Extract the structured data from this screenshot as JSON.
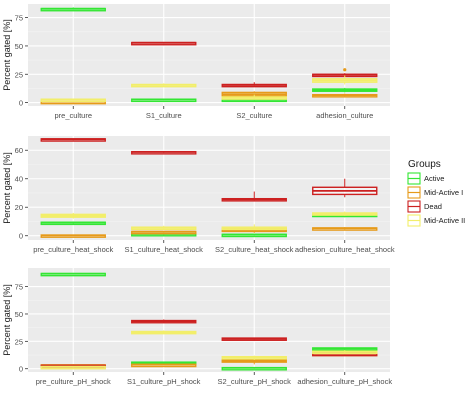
{
  "colors": {
    "panel_bg": "#ebebeb",
    "grid_major": "#ffffff",
    "grid_minor": "#f4f4f4",
    "axis_text": "#4d4d4d",
    "tick": "#333333",
    "Active": "#33e633",
    "Mid-Active I": "#e69a1a",
    "Dead": "#cc2020",
    "Mid-Active II": "#f2ee6a"
  },
  "legend": {
    "title": "Groups",
    "items": [
      {
        "name": "Active",
        "color_key": "Active"
      },
      {
        "name": "Mid-Active I",
        "color_key": "Mid-Active I"
      },
      {
        "name": "Dead",
        "color_key": "Dead"
      },
      {
        "name": "Mid-Active II",
        "color_key": "Mid-Active II"
      }
    ]
  },
  "chart_data": [
    {
      "type": "boxplot",
      "ylabel": "Percent gated [%]",
      "ylim": [
        -3,
        87
      ],
      "yticks": [
        0,
        25,
        50,
        75
      ],
      "categories": [
        "pre_culture",
        "S1_culture",
        "S2_culture",
        "adhesion_culture"
      ],
      "series": [
        {
          "name": "Active",
          "values": [
            [
              82,
              82.5,
              83,
              84
            ],
            [
              2,
              2.5,
              3,
              3
            ],
            [
              1,
              2,
              3,
              4
            ],
            [
              9,
              10,
              12,
              13
            ]
          ]
        },
        {
          "name": "Mid-Active I",
          "values": [
            [
              0,
              0.5,
              1,
              1
            ],
            [
              null,
              null,
              null,
              null
            ],
            [
              5,
              6,
              9,
              10
            ],
            [
              5,
              6,
              7,
              8
            ]
          ]
        },
        {
          "name": "Dead",
          "values": [
            [
              null,
              null,
              null,
              null
            ],
            [
              52,
              52.5,
              53,
              53
            ],
            [
              14,
              15,
              16,
              18
            ],
            [
              23,
              24,
              25,
              26
            ]
          ]
        },
        {
          "name": "Mid-Active II",
          "values": [
            [
              2,
              2.5,
              3,
              3
            ],
            [
              14,
              15,
              16,
              17
            ],
            [
              3,
              4,
              5,
              7
            ],
            [
              16,
              18,
              21,
              24
            ]
          ]
        }
      ],
      "outliers": [
        {
          "category": "adhesion_culture",
          "series": "Mid-Active I",
          "value": 29
        }
      ]
    },
    {
      "type": "boxplot",
      "ylabel": "Percent gated [%]",
      "ylim": [
        -3,
        70
      ],
      "yticks": [
        0,
        20,
        40,
        60
      ],
      "categories": [
        "pre_culture_heat_shock",
        "S1_culture_heat_shock",
        "S2_culture_heat_shock",
        "adhesion_culture_heat_shock"
      ],
      "series": [
        {
          "name": "Active",
          "values": [
            [
              8,
              9,
              9.5,
              10
            ],
            [
              0,
              1,
              1.5,
              2
            ],
            [
              0,
              0.5,
              1,
              1
            ],
            [
              13,
              14,
              15,
              16
            ]
          ]
        },
        {
          "name": "Mid-Active I",
          "values": [
            [
              0,
              0,
              0.5,
              0.5
            ],
            [
              2,
              2.5,
              3,
              3
            ],
            [
              2,
              3,
              5,
              6
            ],
            [
              4,
              5,
              5.5,
              6
            ]
          ]
        },
        {
          "name": "Dead",
          "values": [
            [
              67,
              67.5,
              68,
              68
            ],
            [
              58,
              58.5,
              59,
              59
            ],
            [
              24,
              25,
              26,
              31
            ],
            [
              27,
              29,
              34,
              40
            ]
          ]
        },
        {
          "name": "Mid-Active II",
          "values": [
            [
              12,
              13,
              15,
              16
            ],
            [
              4,
              5,
              6,
              7
            ],
            [
              4,
              5,
              6,
              8
            ],
            [
              14,
              15,
              16,
              17
            ]
          ]
        }
      ]
    },
    {
      "type": "boxplot",
      "ylabel": "Percent gated [%]",
      "ylim": [
        -3,
        92
      ],
      "yticks": [
        0,
        25,
        50,
        75
      ],
      "categories": [
        "pre_culture_pH_shock",
        "S1_culture_pH_shock",
        "S2_culture_pH_shock",
        "adhesion_culture_pH_shock"
      ],
      "series": [
        {
          "name": "Active",
          "values": [
            [
              86,
              86.5,
              87,
              87
            ],
            [
              4,
              5,
              6,
              6
            ],
            [
              0,
              0.5,
              1,
              1
            ],
            [
              17,
              18,
              19,
              19
            ]
          ]
        },
        {
          "name": "Mid-Active I",
          "values": [
            [
              2,
              3,
              3.5,
              4
            ],
            [
              3,
              3.5,
              4,
              4
            ],
            [
              4,
              6,
              8,
              10
            ],
            [
              12,
              13,
              14,
              15
            ]
          ]
        },
        {
          "name": "Dead",
          "values": [
            [
              2,
              2.5,
              3,
              3
            ],
            [
              42,
              43,
              44,
              45
            ],
            [
              26,
              27,
              28,
              28
            ],
            [
              13,
              13.5,
              14,
              14
            ]
          ]
        },
        {
          "name": "Mid-Active II",
          "values": [
            [
              1,
              1.5,
              2,
              2
            ],
            [
              32,
              33,
              34,
              35
            ],
            [
              8,
              10,
              11,
              12
            ],
            [
              14,
              15,
              16,
              17
            ]
          ]
        }
      ]
    }
  ]
}
